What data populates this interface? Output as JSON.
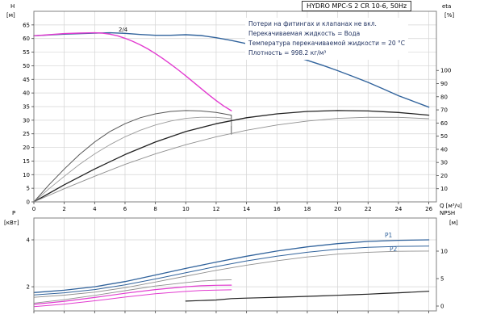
{
  "title": "HYDRO MPC-S 2 CR 10-6, 50Hz",
  "annotations": [
    "Потери на фитингах и клапанах не вкл.",
    "Перекачиваемая жидкость = Вода",
    "Температура перекачиваемой жидкости = 20 °C",
    "Плотность = 998.2 кг/м³"
  ],
  "labels": {
    "p1": "P1",
    "p2": "P2",
    "mode": "2/4"
  },
  "axes": {
    "h_label": "H",
    "h_unit": "[м]",
    "eta_label": "eta",
    "eta_unit": "[%]",
    "q_label": "Q [м³/ч]",
    "p_label": "P",
    "p_unit": "[кВт]",
    "npsh_label": "NPSH",
    "npsh_unit": "[м]"
  },
  "colors": {
    "blue": "#31639c",
    "magenta": "#e23bd0",
    "black": "#222222",
    "gray_dark": "#555555",
    "gray_light": "#8f8f8f",
    "grid": "#d4d4d4",
    "border": "#808080"
  },
  "chart_data": [
    {
      "type": "line",
      "title": "HYDRO MPC-S 2 CR 10-6, 50Hz",
      "xlabel": "Q [м³/ч]",
      "ylabel_left": "H [м]",
      "ylabel_right": "eta [%]",
      "xlim": [
        0,
        26.5
      ],
      "ylim_left": [
        0,
        70
      ],
      "ylim_right": [
        0,
        145
      ],
      "xticks": [
        0,
        2,
        4,
        6,
        8,
        10,
        12,
        14,
        16,
        18,
        20,
        22,
        24,
        26
      ],
      "yticks_left": [
        0,
        5,
        10,
        15,
        20,
        25,
        30,
        35,
        40,
        45,
        50,
        55,
        60,
        65
      ],
      "yticks_right": [
        10,
        20,
        30,
        40,
        50,
        60,
        70,
        80,
        90,
        100
      ],
      "grid": true,
      "series": [
        {
          "name": "head-two-pumps",
          "color": "#31639c",
          "width": 1.4,
          "axis": "left",
          "points": [
            [
              0,
              61
            ],
            [
              2,
              61.6
            ],
            [
              4,
              62
            ],
            [
              5,
              62.1
            ],
            [
              6,
              61.9
            ],
            [
              7,
              61.5
            ],
            [
              8,
              61.2
            ],
            [
              9,
              61.2
            ],
            [
              10,
              61.4
            ],
            [
              11,
              61.1
            ],
            [
              12,
              60.3
            ],
            [
              13,
              59.3
            ],
            [
              14,
              58.1
            ],
            [
              15,
              56.8
            ],
            [
              16,
              55.3
            ],
            [
              17,
              53.7
            ],
            [
              18,
              52
            ],
            [
              19,
              50.2
            ],
            [
              20,
              48.2
            ],
            [
              21,
              46.1
            ],
            [
              22,
              43.9
            ],
            [
              23,
              41.5
            ],
            [
              24,
              39
            ],
            [
              25,
              36.9
            ],
            [
              26,
              34.8
            ]
          ]
        },
        {
          "name": "head-one-pump",
          "color": "#e23bd0",
          "width": 1.4,
          "axis": "left",
          "points": [
            [
              0,
              61
            ],
            [
              1,
              61.4
            ],
            [
              2,
              61.8
            ],
            [
              3,
              62
            ],
            [
              4,
              62.1
            ],
            [
              4.5,
              62
            ],
            [
              5,
              61.6
            ],
            [
              5.5,
              61
            ],
            [
              6,
              60.1
            ],
            [
              6.5,
              59
            ],
            [
              7,
              57.7
            ],
            [
              7.5,
              56.2
            ],
            [
              8,
              54.5
            ],
            [
              8.5,
              52.6
            ],
            [
              9,
              50.6
            ],
            [
              9.5,
              48.5
            ],
            [
              10,
              46.3
            ],
            [
              10.5,
              44
            ],
            [
              11,
              41.7
            ],
            [
              11.5,
              39.4
            ],
            [
              12,
              37.2
            ],
            [
              12.5,
              35.2
            ],
            [
              13,
              33.5
            ]
          ]
        },
        {
          "name": "eta-one-pump-a",
          "color": "#555555",
          "width": 1,
          "axis": "right",
          "points": [
            [
              0,
              0
            ],
            [
              1,
              13
            ],
            [
              2,
              25
            ],
            [
              3,
              36
            ],
            [
              4,
              45.5
            ],
            [
              5,
              53.5
            ],
            [
              6,
              59.5
            ],
            [
              7,
              64
            ],
            [
              8,
              67
            ],
            [
              9,
              68.8
            ],
            [
              10,
              69.5
            ],
            [
              11,
              69.2
            ],
            [
              12,
              68
            ],
            [
              13,
              66
            ],
            [
              13,
              51.5
            ]
          ]
        },
        {
          "name": "eta-one-pump-b",
          "color": "#9a9a9a",
          "width": 0.9,
          "axis": "right",
          "points": [
            [
              0,
              0
            ],
            [
              1,
              10
            ],
            [
              2,
              19.5
            ],
            [
              3,
              28.5
            ],
            [
              4,
              36.5
            ],
            [
              5,
              43.5
            ],
            [
              6,
              49.5
            ],
            [
              7,
              54.5
            ],
            [
              8,
              58.5
            ],
            [
              9,
              61.5
            ],
            [
              10,
              63.5
            ],
            [
              11,
              64.4
            ],
            [
              12,
              64.3
            ],
            [
              13,
              63.3
            ],
            [
              13,
              58
            ]
          ]
        },
        {
          "name": "eta-two-pumps-a",
          "color": "#222222",
          "width": 1.3,
          "axis": "right",
          "points": [
            [
              0,
              0
            ],
            [
              2,
              13
            ],
            [
              4,
              25
            ],
            [
              6,
              36
            ],
            [
              8,
              45.5
            ],
            [
              10,
              53.5
            ],
            [
              12,
              59.5
            ],
            [
              14,
              64
            ],
            [
              16,
              67
            ],
            [
              18,
              68.8
            ],
            [
              20,
              69.5
            ],
            [
              22,
              69.2
            ],
            [
              24,
              68
            ],
            [
              26,
              66
            ]
          ]
        },
        {
          "name": "eta-two-pumps-b",
          "color": "#8f8f8f",
          "width": 0.9,
          "axis": "right",
          "points": [
            [
              0,
              0
            ],
            [
              2,
              10
            ],
            [
              4,
              19.5
            ],
            [
              6,
              28.5
            ],
            [
              8,
              36.5
            ],
            [
              10,
              43.5
            ],
            [
              12,
              49.5
            ],
            [
              14,
              54.5
            ],
            [
              16,
              58.5
            ],
            [
              18,
              61.5
            ],
            [
              20,
              63.5
            ],
            [
              22,
              64.4
            ],
            [
              24,
              64.3
            ],
            [
              26,
              63.3
            ]
          ]
        }
      ]
    },
    {
      "type": "line",
      "title": "",
      "xlabel": "",
      "ylabel_left": "P [кВт]",
      "ylabel_right": "NPSH [м]",
      "xlim": [
        0,
        26.5
      ],
      "ylim_left": [
        0.97,
        4.93
      ],
      "ylim_right": [
        -0.88,
        16.03
      ],
      "xticks": [
        0,
        2,
        4,
        6,
        8,
        10,
        12,
        14,
        16,
        18,
        20,
        22,
        24,
        26
      ],
      "yticks_left": [
        2,
        4
      ],
      "yticks_right": [
        0,
        5,
        10
      ],
      "grid": true,
      "series": [
        {
          "name": "power-p1",
          "color": "#31639c",
          "width": 1.3,
          "axis": "left",
          "points": [
            [
              0,
              1.75
            ],
            [
              2,
              1.85
            ],
            [
              4,
              2.0
            ],
            [
              6,
              2.22
            ],
            [
              8,
              2.5
            ],
            [
              10,
              2.78
            ],
            [
              12,
              3.05
            ],
            [
              14,
              3.3
            ],
            [
              16,
              3.52
            ],
            [
              18,
              3.7
            ],
            [
              20,
              3.84
            ],
            [
              22,
              3.93
            ],
            [
              24,
              3.98
            ],
            [
              26,
              4.0
            ]
          ]
        },
        {
          "name": "power-p2",
          "color": "#31639c",
          "width": 1,
          "axis": "left",
          "points": [
            [
              0,
              1.65
            ],
            [
              2,
              1.74
            ],
            [
              4,
              1.88
            ],
            [
              6,
              2.08
            ],
            [
              8,
              2.33
            ],
            [
              10,
              2.6
            ],
            [
              12,
              2.86
            ],
            [
              14,
              3.1
            ],
            [
              16,
              3.3
            ],
            [
              18,
              3.47
            ],
            [
              20,
              3.6
            ],
            [
              22,
              3.68
            ],
            [
              24,
              3.72
            ],
            [
              26,
              3.73
            ]
          ]
        },
        {
          "name": "power-two-pumps-gray",
          "color": "#8f8f8f",
          "width": 0.9,
          "axis": "left",
          "points": [
            [
              0,
              1.55
            ],
            [
              2,
              1.64
            ],
            [
              4,
              1.77
            ],
            [
              6,
              1.96
            ],
            [
              8,
              2.2
            ],
            [
              10,
              2.45
            ],
            [
              12,
              2.7
            ],
            [
              14,
              2.92
            ],
            [
              16,
              3.11
            ],
            [
              18,
              3.27
            ],
            [
              20,
              3.39
            ],
            [
              22,
              3.47
            ],
            [
              24,
              3.51
            ],
            [
              26,
              3.52
            ]
          ]
        },
        {
          "name": "power-one-pump-gray",
          "color": "#8f8f8f",
          "width": 0.9,
          "axis": "left",
          "points": [
            [
              0,
              1.3
            ],
            [
              2,
              1.45
            ],
            [
              4,
              1.63
            ],
            [
              6,
              1.83
            ],
            [
              8,
              2.03
            ],
            [
              10,
              2.18
            ],
            [
              11,
              2.24
            ],
            [
              12,
              2.28
            ],
            [
              13,
              2.3
            ]
          ]
        },
        {
          "name": "power-one-pump-magenta-a",
          "color": "#e23bd0",
          "width": 1.2,
          "axis": "left",
          "points": [
            [
              0,
              1.25
            ],
            [
              2,
              1.38
            ],
            [
              4,
              1.54
            ],
            [
              6,
              1.72
            ],
            [
              8,
              1.88
            ],
            [
              10,
              2.0
            ],
            [
              11,
              2.04
            ],
            [
              12,
              2.06
            ],
            [
              13,
              2.07
            ]
          ]
        },
        {
          "name": "power-one-pump-magenta-b",
          "color": "#e23bd0",
          "width": 1,
          "axis": "left",
          "points": [
            [
              0,
              1.15
            ],
            [
              2,
              1.26
            ],
            [
              4,
              1.4
            ],
            [
              6,
              1.56
            ],
            [
              8,
              1.7
            ],
            [
              10,
              1.8
            ],
            [
              11,
              1.84
            ],
            [
              12,
              1.86
            ],
            [
              13,
              1.87
            ]
          ]
        },
        {
          "name": "npsh",
          "color": "#222222",
          "width": 1.2,
          "axis": "right",
          "points": [
            [
              10,
              0.9
            ],
            [
              11,
              1.0
            ],
            [
              12,
              1.1
            ],
            [
              13,
              1.35
            ],
            [
              14,
              1.45
            ],
            [
              15,
              1.52
            ],
            [
              16,
              1.6
            ],
            [
              17,
              1.68
            ],
            [
              18,
              1.77
            ],
            [
              19,
              1.86
            ],
            [
              20,
              1.96
            ],
            [
              21,
              2.06
            ],
            [
              22,
              2.17
            ],
            [
              23,
              2.3
            ],
            [
              24,
              2.42
            ],
            [
              25,
              2.55
            ],
            [
              26,
              2.7
            ]
          ]
        }
      ]
    }
  ]
}
